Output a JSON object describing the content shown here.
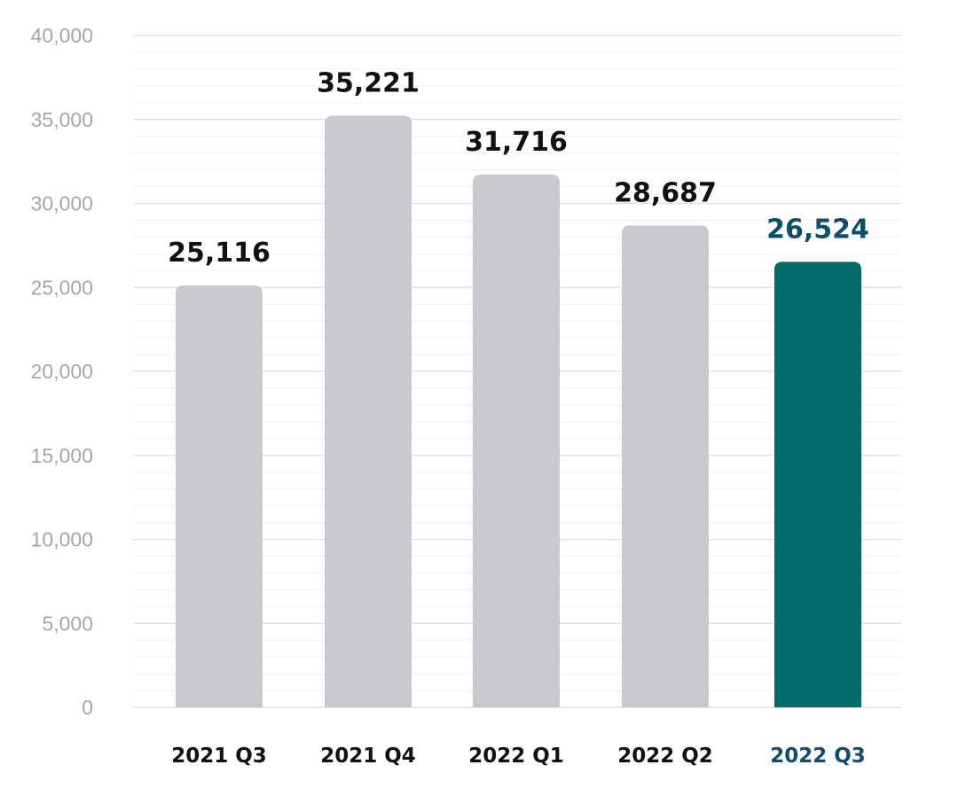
{
  "chart_data": {
    "type": "bar",
    "categories": [
      "2021 Q3",
      "2021 Q4",
      "2022 Q1",
      "2022 Q2",
      "2022 Q3"
    ],
    "values": [
      25116,
      35221,
      31716,
      28687,
      26524
    ],
    "value_labels": [
      "25,116",
      "35,221",
      "31,716",
      "28,687",
      "26,524"
    ],
    "y_tick_labels": [
      "0",
      "5,000",
      "10,000",
      "15,000",
      "20,000",
      "25,000",
      "30,000",
      "35,000",
      "40,000"
    ],
    "title": "",
    "xlabel": "",
    "ylabel": "",
    "ylim": [
      0,
      40000
    ],
    "grid": true,
    "highlight_index": 4,
    "colors": {
      "bar": "#c8c9cc",
      "highlight_bar": "#006b68",
      "highlight_text": "#0e4e6a",
      "label_text": "#111111",
      "grid_major": "#dcdde0",
      "grid_minor": "#eeeff1",
      "tick_text": "#a3a6ab"
    }
  }
}
